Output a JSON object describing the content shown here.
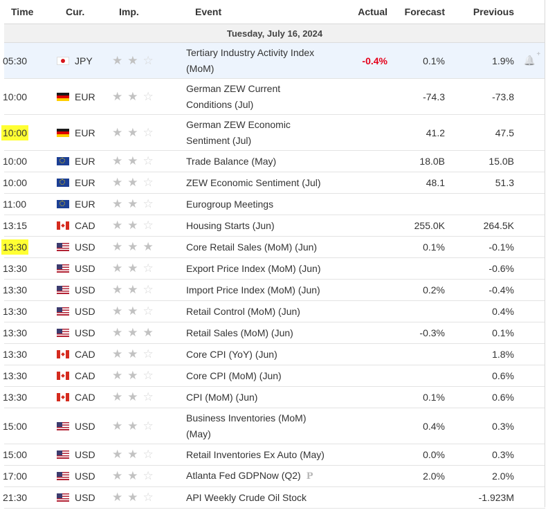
{
  "headers": {
    "time": "Time",
    "cur": "Cur.",
    "imp": "Imp.",
    "event": "Event",
    "actual": "Actual",
    "forecast": "Forecast",
    "previous": "Previous"
  },
  "date_label": "Tuesday, July 16, 2024",
  "rows": [
    {
      "time": "05:30",
      "currency": "JPY",
      "flag": "jpy",
      "importance": 2,
      "event_line1": "Tertiary Industry Activity Index",
      "event_line2": "(MoM)",
      "actual": "-0.4%",
      "forecast": "0.1%",
      "previous": "1.9%",
      "highlighted_time": false,
      "hover": true
    },
    {
      "time": "10:00",
      "currency": "EUR",
      "flag": "deu",
      "importance": 2,
      "event_line1": "German ZEW Current",
      "event_line2": "Conditions (Jul)",
      "actual": "",
      "forecast": "-74.3",
      "previous": "-73.8",
      "highlighted_time": false
    },
    {
      "time": "10:00",
      "currency": "EUR",
      "flag": "deu",
      "importance": 2,
      "event_line1": "German ZEW Economic",
      "event_line2": "Sentiment (Jul)",
      "actual": "",
      "forecast": "41.2",
      "previous": "47.5",
      "highlighted_time": true
    },
    {
      "time": "10:00",
      "currency": "EUR",
      "flag": "eur",
      "importance": 2,
      "event_line1": "Trade Balance (May)",
      "event_line2": "",
      "actual": "",
      "forecast": "18.0B",
      "previous": "15.0B",
      "highlighted_time": false
    },
    {
      "time": "10:00",
      "currency": "EUR",
      "flag": "eur",
      "importance": 2,
      "event_line1": "ZEW Economic Sentiment (Jul)",
      "event_line2": "",
      "actual": "",
      "forecast": "48.1",
      "previous": "51.3",
      "highlighted_time": false
    },
    {
      "time": "11:00",
      "currency": "EUR",
      "flag": "eur",
      "importance": 2,
      "event_line1": "Eurogroup Meetings",
      "event_line2": "",
      "actual": "",
      "forecast": "",
      "previous": "",
      "highlighted_time": false
    },
    {
      "time": "13:15",
      "currency": "CAD",
      "flag": "cad",
      "importance": 2,
      "event_line1": "Housing Starts (Jun)",
      "event_line2": "",
      "actual": "",
      "forecast": "255.0K",
      "previous": "264.5K",
      "highlighted_time": false
    },
    {
      "time": "13:30",
      "currency": "USD",
      "flag": "usd",
      "importance": 3,
      "event_line1": "Core Retail Sales (MoM) (Jun)",
      "event_line2": "",
      "actual": "",
      "forecast": "0.1%",
      "previous": "-0.1%",
      "highlighted_time": true
    },
    {
      "time": "13:30",
      "currency": "USD",
      "flag": "usd",
      "importance": 2,
      "event_line1": "Export Price Index (MoM) (Jun)",
      "event_line2": "",
      "actual": "",
      "forecast": "",
      "previous": "-0.6%",
      "highlighted_time": false
    },
    {
      "time": "13:30",
      "currency": "USD",
      "flag": "usd",
      "importance": 2,
      "event_line1": "Import Price Index (MoM) (Jun)",
      "event_line2": "",
      "actual": "",
      "forecast": "0.2%",
      "previous": "-0.4%",
      "highlighted_time": false
    },
    {
      "time": "13:30",
      "currency": "USD",
      "flag": "usd",
      "importance": 2,
      "event_line1": "Retail Control (MoM) (Jun)",
      "event_line2": "",
      "actual": "",
      "forecast": "",
      "previous": "0.4%",
      "highlighted_time": false
    },
    {
      "time": "13:30",
      "currency": "USD",
      "flag": "usd",
      "importance": 3,
      "event_line1": "Retail Sales (MoM) (Jun)",
      "event_line2": "",
      "actual": "",
      "forecast": "-0.3%",
      "previous": "0.1%",
      "highlighted_time": false
    },
    {
      "time": "13:30",
      "currency": "CAD",
      "flag": "cad",
      "importance": 2,
      "event_line1": "Core CPI (YoY) (Jun)",
      "event_line2": "",
      "actual": "",
      "forecast": "",
      "previous": "1.8%",
      "highlighted_time": false
    },
    {
      "time": "13:30",
      "currency": "CAD",
      "flag": "cad",
      "importance": 2,
      "event_line1": "Core CPI (MoM) (Jun)",
      "event_line2": "",
      "actual": "",
      "forecast": "",
      "previous": "0.6%",
      "highlighted_time": false
    },
    {
      "time": "13:30",
      "currency": "CAD",
      "flag": "cad",
      "importance": 2,
      "event_line1": "CPI (MoM) (Jun)",
      "event_line2": "",
      "actual": "",
      "forecast": "0.1%",
      "previous": "0.6%",
      "highlighted_time": false
    },
    {
      "time": "15:00",
      "currency": "USD",
      "flag": "usd",
      "importance": 2,
      "event_line1": "Business Inventories (MoM)",
      "event_line2": "(May)",
      "actual": "",
      "forecast": "0.4%",
      "previous": "0.3%",
      "highlighted_time": false
    },
    {
      "time": "15:00",
      "currency": "USD",
      "flag": "usd",
      "importance": 2,
      "event_line1": "Retail Inventories Ex Auto (May)",
      "event_line2": "",
      "actual": "",
      "forecast": "0.0%",
      "previous": "0.3%",
      "highlighted_time": false
    },
    {
      "time": "17:00",
      "currency": "USD",
      "flag": "usd",
      "importance": 2,
      "event_line1": "Atlanta Fed GDPNow (Q2)",
      "event_line2": "",
      "actual": "",
      "forecast": "2.0%",
      "previous": "2.0%",
      "highlighted_time": false,
      "preliminary_icon": "P"
    },
    {
      "time": "21:30",
      "currency": "USD",
      "flag": "usd",
      "importance": 2,
      "event_line1": "API Weekly Crude Oil Stock",
      "event_line2": "",
      "actual": "",
      "forecast": "",
      "previous": "-1.923M",
      "highlighted_time": false
    }
  ],
  "icons": {
    "alert": "bell-plus-icon",
    "star": "importance-star-icon"
  },
  "colors": {
    "negative_actual": "#e5001a",
    "highlight_marker": "#ffff33",
    "hover_row": "#edf4fd"
  }
}
